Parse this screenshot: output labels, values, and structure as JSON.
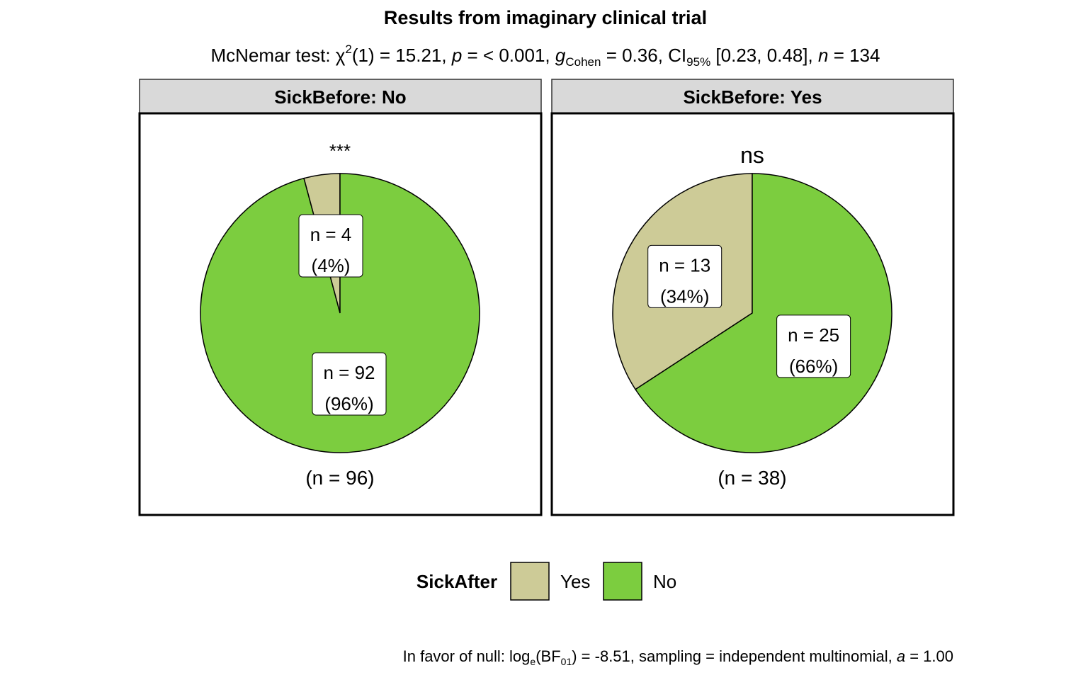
{
  "chart_data": {
    "type": "pie",
    "title": "Results from imaginary clinical trial",
    "subtitle": {
      "test_name": "McNemar test:",
      "chi_sq": "(1) = 15.21,",
      "p_text": "= < 0.001,",
      "g_sub": "Cohen",
      "g_text": "= 0.36, CI",
      "ci_sub": "95%",
      "ci_text": "[0.23, 0.48],",
      "n_text": "= 134"
    },
    "caption": {
      "prefix": "In favor of null: log",
      "log_base": "e",
      "bf_open": "(BF",
      "bf_sub": "01",
      "bf_rest": ") = -8.51, sampling = independent multinomial,",
      "a_rest": "= 1.00"
    },
    "legend": {
      "title": "SickAfter",
      "placement": "bottom",
      "items": [
        {
          "label": "Yes",
          "color": "#CDCB97"
        },
        {
          "label": "No",
          "color": "#7CCD3F"
        }
      ]
    },
    "facets": [
      {
        "strip": "SickBefore: No",
        "significance": "***",
        "total_label": "(n = 96)",
        "slices": [
          {
            "name": "Yes",
            "count": 4,
            "label_count": "n = 4",
            "label_pct": "(4%)",
            "color": "#CDCB97"
          },
          {
            "name": "No",
            "count": 92,
            "label_count": "n = 92",
            "label_pct": "(96%)",
            "color": "#7CCD3F"
          }
        ]
      },
      {
        "strip": "SickBefore: Yes",
        "significance": "ns",
        "total_label": "(n = 38)",
        "slices": [
          {
            "name": "Yes",
            "count": 13,
            "label_count": "n = 13",
            "label_pct": "(34%)",
            "color": "#CDCB97"
          },
          {
            "name": "No",
            "count": 25,
            "label_count": "n = 25",
            "label_pct": "(66%)",
            "color": "#7CCD3F"
          }
        ]
      }
    ]
  }
}
